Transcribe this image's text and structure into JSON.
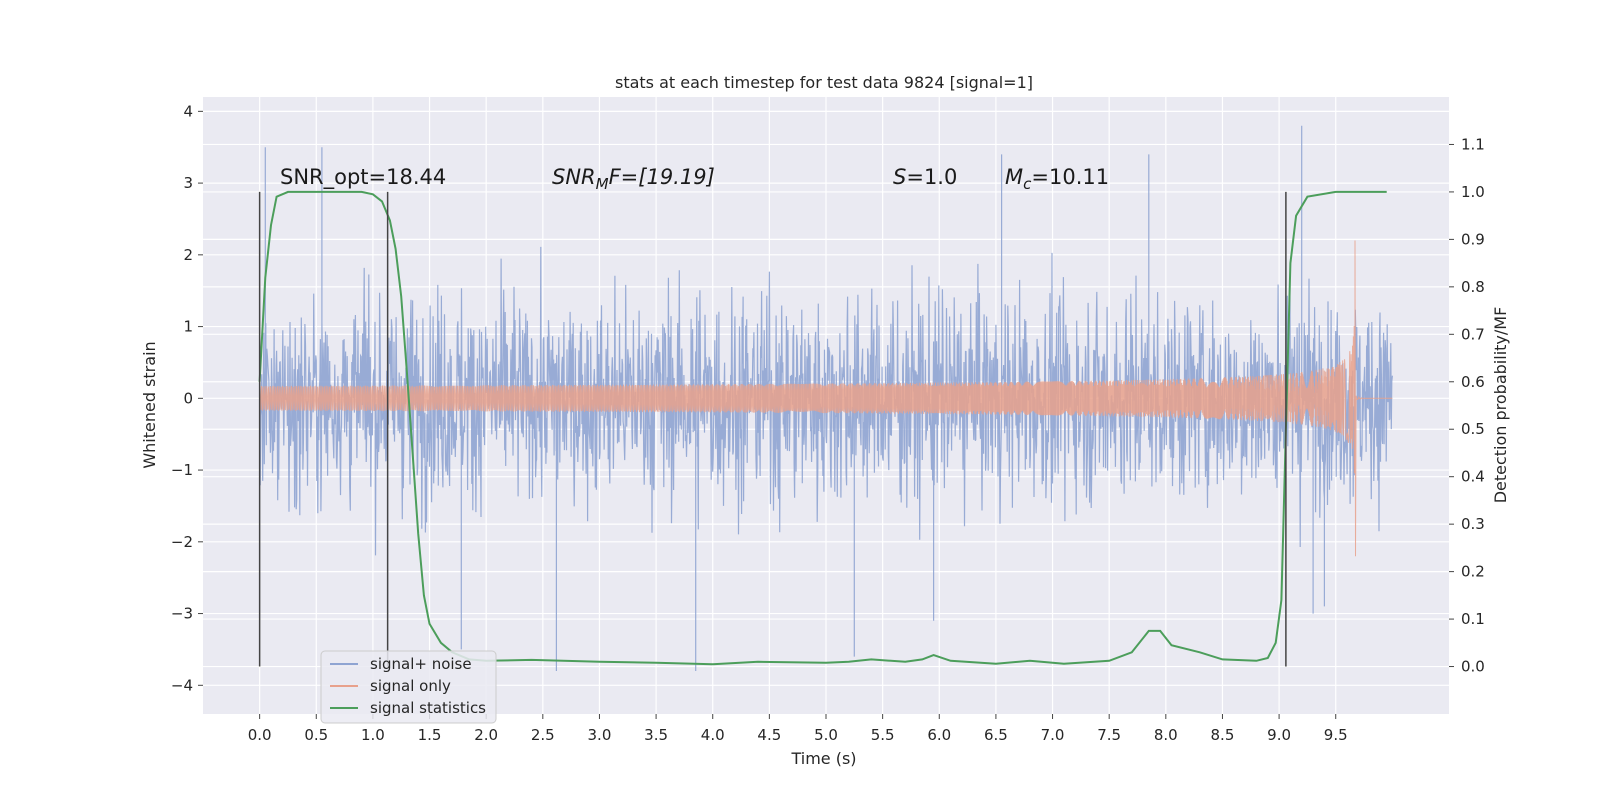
{
  "chart_data": {
    "type": "line",
    "title": "stats at each timestep for test data 9824 [signal=1]",
    "xlabel": "Time (s)",
    "ylabel": "Whitened strain",
    "y2label": "Detection probability/MF",
    "xlim": [
      -0.5,
      10.5
    ],
    "ylim": [
      -4.4,
      4.2
    ],
    "y2lim": [
      -0.1,
      1.2
    ],
    "x_ticks": [
      "0.0",
      "0.5",
      "1.0",
      "1.5",
      "2.0",
      "2.5",
      "3.0",
      "3.5",
      "4.0",
      "4.5",
      "5.0",
      "5.5",
      "6.0",
      "6.5",
      "7.0",
      "7.5",
      "8.0",
      "8.5",
      "9.0",
      "9.5"
    ],
    "y_ticks": [
      "4",
      "3",
      "2",
      "1",
      "0",
      "−1",
      "−2",
      "−3",
      "−4"
    ],
    "y2_ticks": [
      "1.1",
      "1.0",
      "0.9",
      "0.8",
      "0.7",
      "0.6",
      "0.5",
      "0.4",
      "0.3",
      "0.2",
      "0.1",
      "0.0"
    ],
    "grid": true,
    "legend_position": "lower-left",
    "annotations": {
      "snr_opt": "SNR_opt=18.44",
      "snr_mf_sym": "SNR",
      "snr_mf_sub": "M",
      "snr_mf_rest": "F=[19.19]",
      "s_sym": "S",
      "s_rest": "=1.0",
      "mc_sym": "M",
      "mc_sub": "c",
      "mc_rest": "=10.11"
    },
    "vertical_markers_s": [
      0.0,
      1.13,
      9.06
    ],
    "series": [
      {
        "name": "signal+ noise",
        "color": "#8fa4d2",
        "kind": "noise",
        "t_range": [
          0.0,
          10.0
        ],
        "typical_amplitude": 1.6,
        "outliers": [
          [
            0.05,
            3.5
          ],
          [
            0.55,
            3.5
          ],
          [
            1.78,
            -3.5
          ],
          [
            2.62,
            -3.8
          ],
          [
            3.85,
            -3.8
          ],
          [
            5.25,
            -3.6
          ],
          [
            5.95,
            -3.1
          ],
          [
            6.55,
            3.4
          ],
          [
            7.85,
            3.4
          ],
          [
            9.2,
            3.8
          ],
          [
            9.3,
            -3.0
          ],
          [
            9.4,
            -2.9
          ]
        ]
      },
      {
        "name": "signal only",
        "color": "#e8a18c",
        "kind": "chirp",
        "t_start": 0.0,
        "t_merge": 9.67,
        "peak_amplitude": 2.2
      },
      {
        "name": "signal statistics",
        "color": "#4c9e5b",
        "kind": "line",
        "axis": "right",
        "points": [
          [
            0.0,
            0.6
          ],
          [
            0.05,
            0.82
          ],
          [
            0.1,
            0.93
          ],
          [
            0.15,
            0.99
          ],
          [
            0.25,
            1.0
          ],
          [
            0.9,
            1.0
          ],
          [
            1.0,
            0.995
          ],
          [
            1.08,
            0.98
          ],
          [
            1.15,
            0.94
          ],
          [
            1.2,
            0.88
          ],
          [
            1.25,
            0.78
          ],
          [
            1.3,
            0.62
          ],
          [
            1.35,
            0.45
          ],
          [
            1.4,
            0.28
          ],
          [
            1.45,
            0.15
          ],
          [
            1.5,
            0.09
          ],
          [
            1.6,
            0.05
          ],
          [
            1.7,
            0.03
          ],
          [
            1.85,
            0.015
          ],
          [
            2.0,
            0.012
          ],
          [
            2.4,
            0.014
          ],
          [
            3.0,
            0.01
          ],
          [
            3.5,
            0.008
          ],
          [
            4.0,
            0.005
          ],
          [
            4.4,
            0.01
          ],
          [
            5.0,
            0.008
          ],
          [
            5.2,
            0.01
          ],
          [
            5.4,
            0.015
          ],
          [
            5.7,
            0.01
          ],
          [
            5.85,
            0.015
          ],
          [
            5.95,
            0.024
          ],
          [
            6.1,
            0.012
          ],
          [
            6.5,
            0.006
          ],
          [
            6.8,
            0.012
          ],
          [
            7.1,
            0.006
          ],
          [
            7.5,
            0.012
          ],
          [
            7.7,
            0.03
          ],
          [
            7.85,
            0.075
          ],
          [
            7.95,
            0.075
          ],
          [
            8.05,
            0.045
          ],
          [
            8.3,
            0.03
          ],
          [
            8.5,
            0.015
          ],
          [
            8.8,
            0.012
          ],
          [
            8.9,
            0.018
          ],
          [
            8.97,
            0.05
          ],
          [
            9.02,
            0.14
          ],
          [
            9.06,
            0.5
          ],
          [
            9.1,
            0.85
          ],
          [
            9.15,
            0.95
          ],
          [
            9.25,
            0.99
          ],
          [
            9.5,
            1.0
          ],
          [
            9.95,
            1.0
          ]
        ]
      }
    ]
  }
}
